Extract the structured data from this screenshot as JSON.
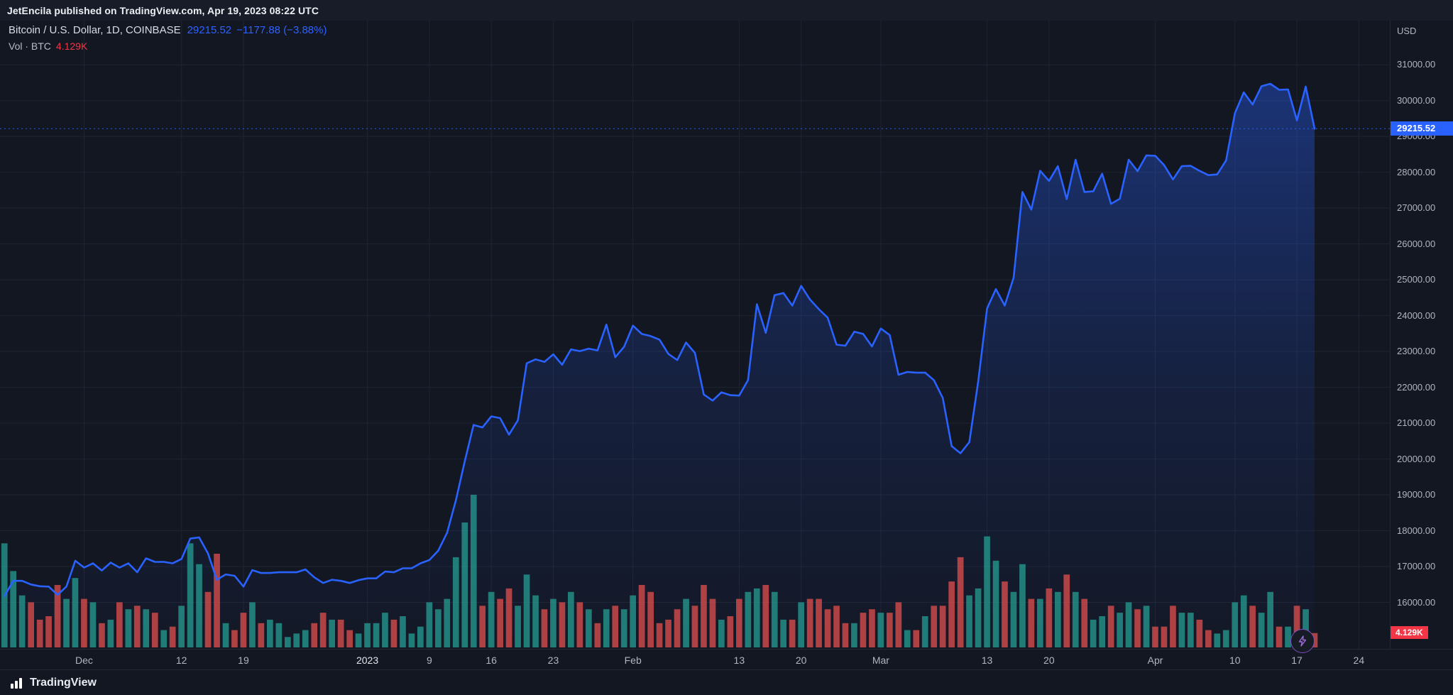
{
  "publish_bar": {
    "text": "JetEncila published on TradingView.com, Apr 19, 2023 08:22 UTC"
  },
  "legend": {
    "symbol_title": "Bitcoin / U.S. Dollar, 1D, COINBASE",
    "last_price": "29215.52",
    "change": "−1177.88 (−3.88%)",
    "volume_label": "Vol · BTC",
    "volume_value": "4.129K"
  },
  "price_scale": {
    "currency": "USD",
    "last_price_badge": "29215.52",
    "volume_badge": "4.129K"
  },
  "footer": {
    "brand": "TradingView"
  },
  "colors": {
    "background": "#131722",
    "grid": "#1f2433",
    "line": "#2962ff",
    "area_top": "rgba(41,98,255,0.38)",
    "area_mid": "rgba(41,98,255,0.12)",
    "area_bottom": "rgba(41,98,255,0.02)",
    "vol_up": "#26a69a",
    "vol_down": "#ef5350",
    "badge_price_bg": "#2962ff",
    "badge_volume_bg": "#f23645",
    "axis_text": "#b2b5be"
  },
  "chart_data": {
    "type": "area",
    "title": "Bitcoin / U.S. Dollar, 1D, COINBASE",
    "xlabel": "",
    "ylabel": "USD",
    "start_date": "2022-11-22",
    "frequency": "daily",
    "last_price": 29215.52,
    "y_ticks": [
      31000,
      30000,
      29000,
      28000,
      27000,
      26000,
      25000,
      24000,
      23000,
      22000,
      21000,
      20000,
      19000,
      18000,
      17000,
      16000
    ],
    "ylim_labeled": [
      16000,
      31000
    ],
    "x_labels": [
      {
        "text": "Dec",
        "i": 9
      },
      {
        "text": "12",
        "i": 20
      },
      {
        "text": "19",
        "i": 27
      },
      {
        "text": "2023",
        "i": 41,
        "major": true
      },
      {
        "text": "9",
        "i": 48
      },
      {
        "text": "16",
        "i": 55
      },
      {
        "text": "23",
        "i": 62
      },
      {
        "text": "Feb",
        "i": 71
      },
      {
        "text": "13",
        "i": 83
      },
      {
        "text": "20",
        "i": 90
      },
      {
        "text": "Mar",
        "i": 99
      },
      {
        "text": "13",
        "i": 111
      },
      {
        "text": "20",
        "i": 118
      },
      {
        "text": "Apr",
        "i": 130
      },
      {
        "text": "10",
        "i": 139
      },
      {
        "text": "17",
        "i": 146
      },
      {
        "text": "24",
        "i": 153
      }
    ],
    "closes": [
      16170,
      16600,
      16600,
      16500,
      16450,
      16440,
      16210,
      16440,
      17160,
      16970,
      17090,
      16890,
      17110,
      16970,
      17090,
      16840,
      17230,
      17130,
      17130,
      17090,
      17210,
      17780,
      17810,
      17360,
      16630,
      16780,
      16740,
      16440,
      16900,
      16820,
      16820,
      16840,
      16840,
      16840,
      16920,
      16700,
      16540,
      16630,
      16600,
      16540,
      16620,
      16670,
      16670,
      16860,
      16840,
      16950,
      16950,
      17090,
      17180,
      17440,
      17940,
      18850,
      19930,
      20950,
      20880,
      21190,
      21140,
      20680,
      21080,
      22670,
      22780,
      22710,
      22920,
      22630,
      23060,
      23010,
      23080,
      23030,
      23750,
      22840,
      23130,
      23720,
      23490,
      23430,
      23330,
      22930,
      22760,
      23250,
      22960,
      21800,
      21630,
      21860,
      21780,
      21770,
      22200,
      24320,
      23520,
      24570,
      24630,
      24280,
      24830,
      24450,
      24180,
      23940,
      23190,
      23160,
      23550,
      23490,
      23140,
      23640,
      23460,
      22350,
      22430,
      22410,
      22410,
      22200,
      21700,
      20360,
      20160,
      20470,
      22160,
      24200,
      24740,
      24280,
      25060,
      27450,
      26960,
      28040,
      27760,
      28170,
      27250,
      28350,
      27450,
      27470,
      27960,
      27120,
      27260,
      28350,
      28030,
      28470,
      28460,
      28200,
      27800,
      28170,
      28180,
      28040,
      27920,
      27940,
      28330,
      29650,
      30230,
      29890,
      30400,
      30470,
      30300,
      30310,
      29450,
      30390,
      29215.52
    ],
    "volumes_k": [
      30,
      22,
      15,
      13,
      8,
      9,
      18,
      14,
      20,
      14,
      13,
      7,
      8,
      13,
      11,
      12,
      11,
      10,
      5,
      6,
      12,
      30,
      24,
      16,
      27,
      7,
      5,
      10,
      13,
      7,
      8,
      7,
      3,
      4,
      5,
      7,
      10,
      8,
      8,
      5,
      4,
      7,
      7,
      10,
      8,
      9,
      4,
      6,
      13,
      11,
      14,
      26,
      36,
      44,
      12,
      16,
      14,
      17,
      12,
      21,
      15,
      11,
      14,
      13,
      16,
      13,
      11,
      7,
      11,
      12,
      11,
      15,
      18,
      16,
      7,
      8,
      11,
      14,
      12,
      18,
      14,
      8,
      9,
      14,
      16,
      17,
      18,
      16,
      8,
      8,
      13,
      14,
      14,
      11,
      12,
      7,
      7,
      10,
      11,
      10,
      10,
      13,
      5,
      5,
      9,
      12,
      12,
      19,
      26,
      15,
      17,
      32,
      25,
      19,
      16,
      24,
      14,
      14,
      17,
      16,
      21,
      16,
      14,
      8,
      9,
      12,
      10,
      13,
      11,
      12,
      6,
      6,
      12,
      10,
      10,
      8,
      5,
      4,
      5,
      13,
      15,
      12,
      10,
      16,
      6,
      6,
      12,
      11,
      4.129
    ],
    "volume_axis_max_k": 45,
    "legend_last_volume": "4.129K",
    "grid": true,
    "legend_position": "top-left"
  }
}
